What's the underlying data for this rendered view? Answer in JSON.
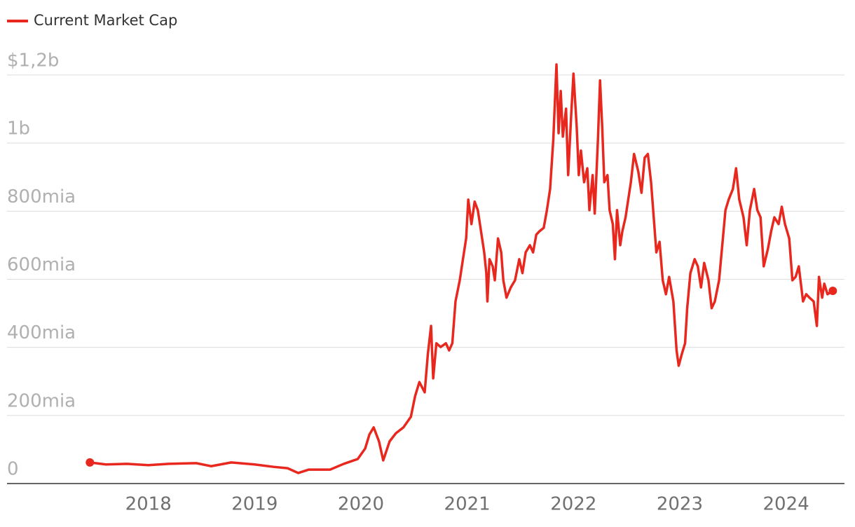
{
  "chart_data": {
    "type": "line",
    "legend": "top-left",
    "grid": true,
    "xlim": [
      2016.67,
      2024.55
    ],
    "xticks": [
      2018,
      2019,
      2020,
      2021,
      2022,
      2023,
      2024
    ],
    "ylim": [
      0,
      1200
    ],
    "yticks": [
      0,
      {
        "value": 200,
        "label": "200mia"
      },
      {
        "value": 400,
        "label": "400mia"
      },
      {
        "value": 600,
        "label": "600mia"
      },
      {
        "value": 800,
        "label": "800mia"
      },
      {
        "value": 1000,
        "label": "1b"
      },
      {
        "value": 1200,
        "label": "$1,2b"
      }
    ],
    "x": [
      2017.45,
      2017.6,
      2017.8,
      2018.0,
      2018.19,
      2018.45,
      2018.59,
      2018.78,
      2019.0,
      2019.18,
      2019.31,
      2019.41,
      2019.51,
      2019.71,
      2019.84,
      2019.97,
      2020.04,
      2020.08,
      2020.12,
      2020.17,
      2020.21,
      2020.27,
      2020.33,
      2020.4,
      2020.47,
      2020.51,
      2020.55,
      2020.6,
      2020.63,
      2020.66,
      2020.68,
      2020.71,
      2020.75,
      2020.8,
      2020.83,
      2020.86,
      2020.89,
      2020.93,
      2020.96,
      2020.99,
      2021.01,
      2021.04,
      2021.07,
      2021.1,
      2021.13,
      2021.16,
      2021.18,
      2021.19,
      2021.21,
      2021.24,
      2021.26,
      2021.29,
      2021.32,
      2021.34,
      2021.37,
      2021.41,
      2021.45,
      2021.49,
      2021.52,
      2021.55,
      2021.59,
      2021.62,
      2021.65,
      2021.68,
      2021.72,
      2021.75,
      2021.78,
      2021.81,
      2021.84,
      2021.86,
      2021.88,
      2021.9,
      2021.93,
      2021.95,
      2021.98,
      2022.0,
      2022.03,
      2022.05,
      2022.07,
      2022.1,
      2022.13,
      2022.15,
      2022.18,
      2022.2,
      2022.23,
      2022.25,
      2022.27,
      2022.29,
      2022.32,
      2022.34,
      2022.37,
      2022.39,
      2022.41,
      2022.44,
      2022.46,
      2022.49,
      2022.52,
      2022.54,
      2022.57,
      2022.61,
      2022.64,
      2022.67,
      2022.7,
      2022.73,
      2022.75,
      2022.78,
      2022.81,
      2022.84,
      2022.87,
      2022.9,
      2022.94,
      2022.97,
      2022.99,
      2023.02,
      2023.05,
      2023.07,
      2023.1,
      2023.14,
      2023.17,
      2023.2,
      2023.23,
      2023.27,
      2023.3,
      2023.33,
      2023.37,
      2023.4,
      2023.43,
      2023.46,
      2023.5,
      2023.53,
      2023.56,
      2023.6,
      2023.63,
      2023.66,
      2023.7,
      2023.73,
      2023.76,
      2023.79,
      2023.83,
      2023.86,
      2023.89,
      2023.93,
      2023.96,
      2023.99,
      2024.03,
      2024.06,
      2024.09,
      2024.12,
      2024.16,
      2024.19,
      2024.22,
      2024.26,
      2024.29,
      2024.31,
      2024.34,
      2024.36,
      2024.39,
      2024.44
    ],
    "series": [
      {
        "name": "Current Market Cap",
        "color": "#e8281e",
        "values": [
          62,
          56,
          58,
          54,
          58,
          60,
          51,
          62,
          56,
          49,
          45,
          31,
          41,
          41,
          58,
          72,
          103,
          144,
          165,
          124,
          68,
          124,
          148,
          165,
          196,
          257,
          298,
          268,
          381,
          463,
          309,
          412,
          401,
          412,
          391,
          412,
          535,
          597,
          659,
          720,
          834,
          762,
          828,
          803,
          741,
          679,
          618,
          535,
          659,
          638,
          597,
          720,
          679,
          597,
          546,
          576,
          597,
          659,
          618,
          679,
          700,
          679,
          731,
          741,
          751,
          803,
          865,
          1009,
          1231,
          1029,
          1153,
          1019,
          1101,
          906,
          1091,
          1204,
          1050,
          906,
          978,
          885,
          926,
          803,
          906,
          793,
          1009,
          1184,
          1050,
          885,
          906,
          803,
          762,
          659,
          803,
          700,
          741,
          782,
          844,
          885,
          968,
          916,
          854,
          957,
          968,
          885,
          803,
          679,
          710,
          597,
          556,
          607,
          535,
          391,
          346,
          381,
          412,
          515,
          618,
          659,
          638,
          576,
          648,
          597,
          515,
          535,
          597,
          700,
          803,
          834,
          865,
          926,
          834,
          782,
          700,
          803,
          865,
          803,
          782,
          638,
          690,
          741,
          782,
          762,
          813,
          762,
          720,
          597,
          607,
          638,
          535,
          556,
          546,
          535,
          463,
          607,
          546,
          587,
          556,
          566
        ]
      }
    ]
  }
}
